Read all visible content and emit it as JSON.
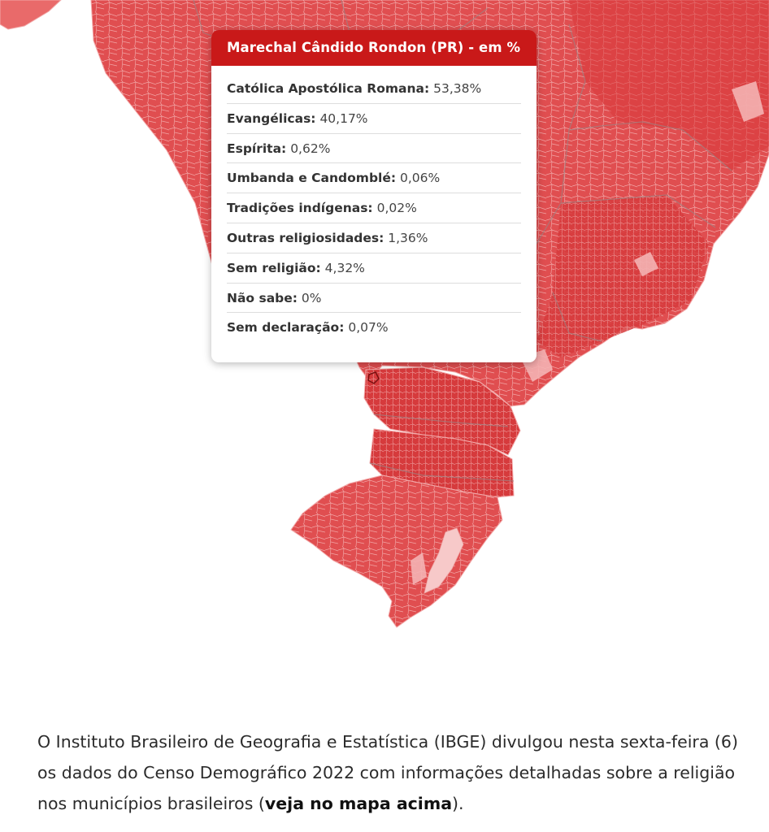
{
  "map": {
    "colors": {
      "dark": "#d83a3e",
      "mid": "#e45a5a",
      "light": "#ef8c8c",
      "pale": "#f6b9b9",
      "border": "#f2aaaa",
      "state_border": "#a08888"
    }
  },
  "tooltip": {
    "title": "Marechal Cândido Rondon (PR) - em %",
    "header_color": "#c91919",
    "rows": [
      {
        "label": "Católica Apostólica Romana:",
        "value": "53,38%"
      },
      {
        "label": "Evangélicas:",
        "value": "40,17%"
      },
      {
        "label": "Espírita:",
        "value": "0,62%"
      },
      {
        "label": "Umbanda e Candomblé:",
        "value": "0,06%"
      },
      {
        "label": "Tradições indígenas:",
        "value": "0,02%"
      },
      {
        "label": "Outras religiosidades:",
        "value": "1,36%"
      },
      {
        "label": "Sem religião:",
        "value": "4,32%"
      },
      {
        "label": "Não sabe:",
        "value": "0%"
      },
      {
        "label": "Sem declaração:",
        "value": "0,07%"
      }
    ]
  },
  "article": {
    "text_before": "O Instituto Brasileiro de Geografia e Estatística (IBGE) divulgou nesta sexta-feira (6) os dados do Censo Demográfico 2022 com informações detalhadas sobre a religião nos municípios brasileiros (",
    "link_text": "veja no mapa acima",
    "text_after": ")."
  }
}
